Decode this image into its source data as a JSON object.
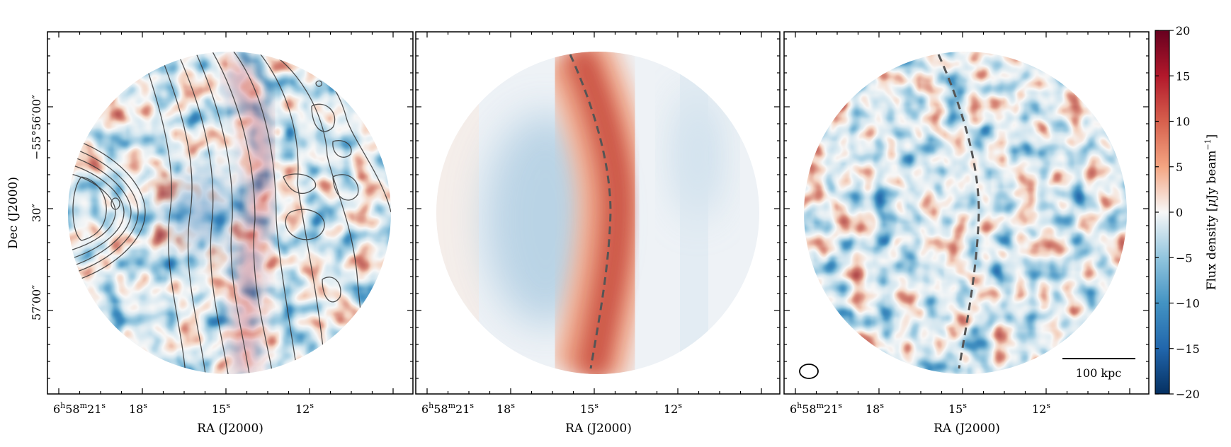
{
  "y_axis": {
    "label": "Dec (J2000)",
    "ticks": [
      "−55°56′00″",
      "30″",
      "57′00″"
    ]
  },
  "x_axis": {
    "label": "RA (J2000)",
    "ticks": [
      {
        "h": "6",
        "hs": "h",
        "m": "58",
        "ms": "m",
        "s": "21",
        "ss": "s"
      },
      {
        "s": "18",
        "ss": "s"
      },
      {
        "s": "15",
        "ss": "s"
      },
      {
        "s": "12",
        "ss": "s"
      }
    ]
  },
  "colorbar": {
    "label_main": "Flux density [",
    "label_mu": "μ",
    "label_unit": "Jy beam",
    "label_exp": "−1",
    "label_close": "]",
    "ticks": [
      "20",
      "15",
      "10",
      "5",
      "0",
      "−5",
      "−10",
      "−15",
      "−20"
    ],
    "colors": {
      "high": "#67001f",
      "mid": "#f7f7f7",
      "low": "#053061"
    }
  },
  "panels": [
    {
      "name": "observed-map",
      "has_contours": true,
      "has_shock_line": false
    },
    {
      "name": "model-map",
      "has_contours": false,
      "has_shock_line": true
    },
    {
      "name": "residual-map",
      "has_contours": false,
      "has_shock_line": true
    }
  ],
  "scalebar": {
    "label": "100 kpc"
  }
}
